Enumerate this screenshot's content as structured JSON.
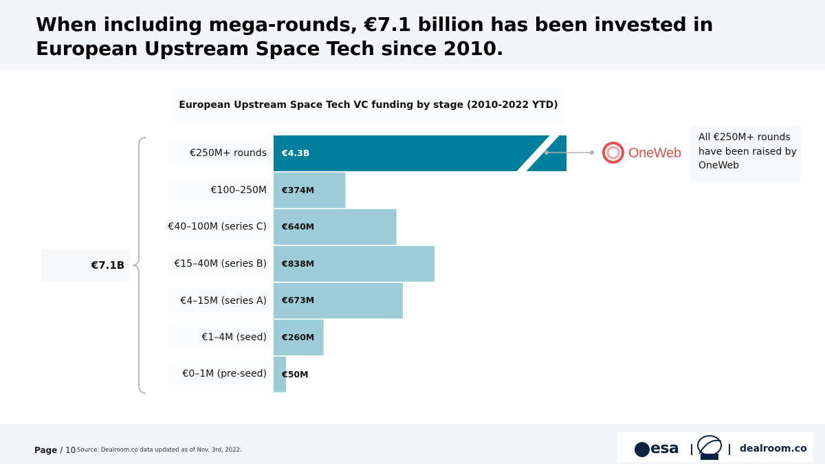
{
  "title": "When including mega-rounds, €7.1 billion has been invested in European Upstream Space Tech since 2010.",
  "total_label": "€7.1B",
  "chart_data": {
    "type": "bar",
    "orientation": "horizontal",
    "title": "European Upstream Space Tech VC funding by stage (2010-2022 YTD)",
    "unit": "€M",
    "categories": [
      "€250M+ rounds",
      "€100–250M",
      "€40–100M (series C)",
      "€15–40M (series B)",
      "€4–15M (series A)",
      "€1–4M (seed)",
      "€0–1M (pre-seed)"
    ],
    "values": [
      4300,
      374,
      640,
      838,
      673,
      260,
      50
    ],
    "value_labels": [
      "€4.3B",
      "€374M",
      "€640M",
      "€838M",
      "€673M",
      "€260M",
      "€50M"
    ],
    "axis_break_on": "€250M+ rounds",
    "colors": {
      "highlight": "#00809d",
      "default": "#9dcdd9"
    },
    "xlabel": "",
    "ylabel": ""
  },
  "annotation": {
    "logo_text": "OneWeb",
    "note": "All €250M+ rounds have been raised by OneWeb"
  },
  "footer": {
    "page_label": "Page",
    "page_number": "/ 10",
    "source": "Source: Dealroom.co   data updated as of Nov. 3rd, 2022.",
    "logo_esa": "esa",
    "logo_dealroom": "dealroom.co",
    "colors": {
      "esa": "#0b2240",
      "oneweb": "#e8504f"
    }
  }
}
